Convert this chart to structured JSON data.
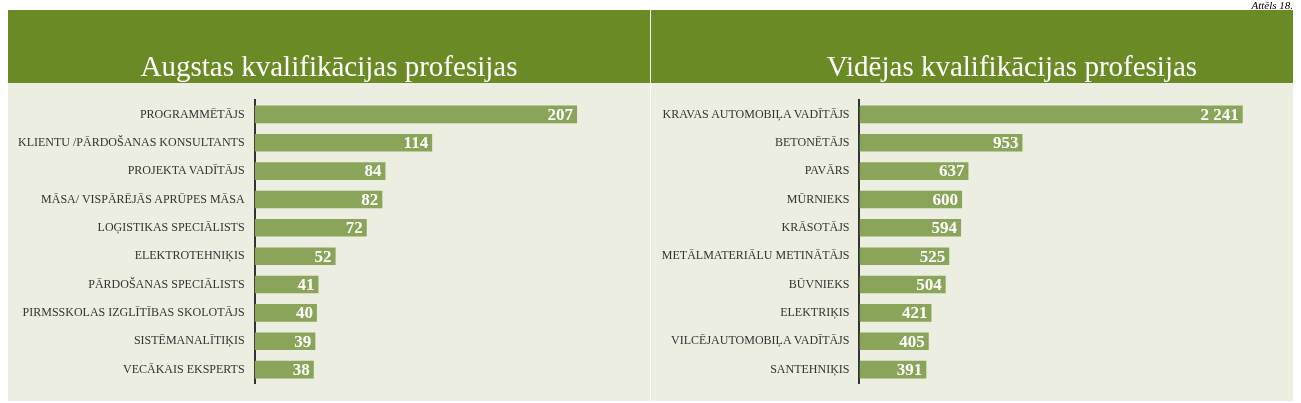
{
  "chart_data": [
    {
      "type": "bar",
      "orientation": "horizontal",
      "title": "Augstas kvalifikācijas profesijas",
      "annotations": [
        "Attēls 18."
      ],
      "data_labels": true,
      "color": "#8aa55a",
      "categories": [
        "PROGRAMMĒTĀJS",
        "KLIENTU /PĀRDOŠANAS KONSULTANTS",
        "PROJEKTA VADĪTĀJS",
        "MĀSA/ VISPĀRĒJĀS APRŪPES MĀSA",
        "LOĢISTIKAS SPECIĀLISTS",
        "ELEKTROTEHNIĶIS",
        "PĀRDOŠANAS SPECIĀLISTS",
        "PIRMSSKOLAS IZGLĪTĪBAS SKOLOTĀJS",
        "SISTĒMANALĪTIĶIS",
        "VECĀKAIS EKSPERTS"
      ],
      "values": [
        207,
        114,
        84,
        82,
        72,
        52,
        41,
        40,
        39,
        38
      ]
    },
    {
      "type": "bar",
      "orientation": "horizontal",
      "title": "Vidējas kvalifikācijas profesijas",
      "color": "#8aa55a",
      "categories": [
        "KRAVAS AUTOMOBIĻA VADĪTĀJS",
        "BETONĒTĀJS",
        "PAVĀRS",
        "MŪRNIEKS",
        "KRĀSOTĀJS",
        "METĀLMATERIĀLU METINĀTĀJS",
        "BŪVNIEKS",
        "ELEKTRIĶIS",
        "VILCĒJAUTOMOBIĻA VADĪTĀJS",
        "SANTEHNIĶIS"
      ],
      "values": [
        2241,
        953,
        637,
        600,
        594,
        525,
        504,
        421,
        405,
        391
      ],
      "value_labels": [
        "2 241",
        "953",
        "637",
        "600",
        "594",
        "525",
        "504",
        "421",
        "405",
        "391"
      ]
    }
  ]
}
